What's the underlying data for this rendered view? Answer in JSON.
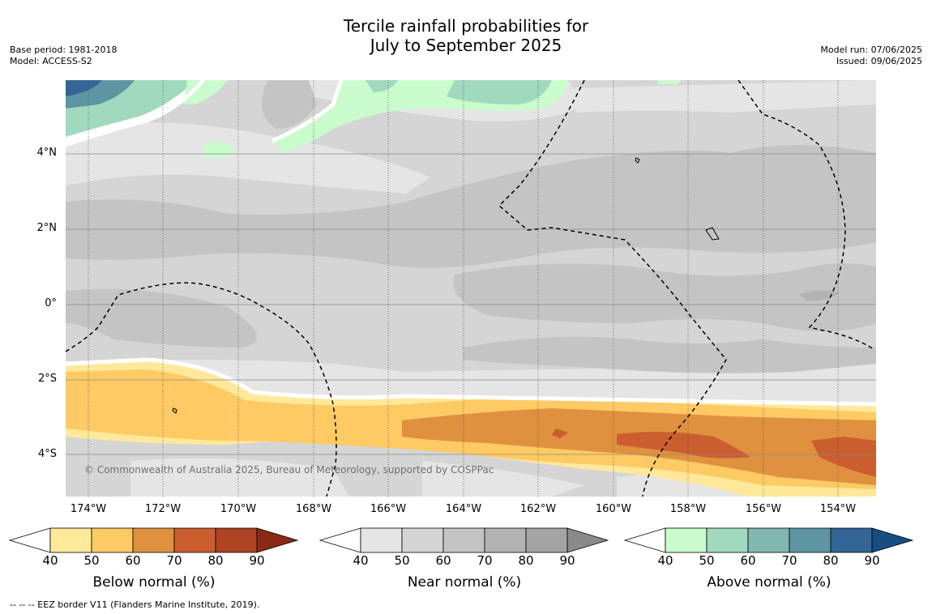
{
  "title_line1": "Tercile rainfall probabilities for",
  "title_line2": "July to September 2025",
  "base_period": "Base period: 1981-2018",
  "model": "Model: ACCESS-S2",
  "model_run": "Model run: 07/06/2025",
  "issued": "Issued: 09/06/2025",
  "copyright": "© Commonwealth of Australia 2025, Bureau of Meteorology, supported by COSPPac",
  "footnote": "--  --  -- EEZ border V11 (Flanders Marine Institute, 2019).",
  "y_ticks": [
    "4°N",
    "2°N",
    "0°",
    "2°S",
    "4°S"
  ],
  "x_ticks": [
    "174°W",
    "172°W",
    "170°W",
    "168°W",
    "166°W",
    "164°W",
    "162°W",
    "160°W",
    "158°W",
    "156°W",
    "154°W"
  ],
  "colorbars": [
    {
      "label": "Below normal (%)",
      "ticks": [
        "40",
        "50",
        "60",
        "70",
        "80",
        "90"
      ],
      "colors": [
        "#ffffff",
        "#fee99b",
        "#fdca64",
        "#e0913f",
        "#ca5e2e",
        "#ae4423",
        "#8b2a14"
      ]
    },
    {
      "label": "Near normal (%)",
      "ticks": [
        "40",
        "50",
        "60",
        "70",
        "80",
        "90"
      ],
      "colors": [
        "#ffffff",
        "#e5e5e5",
        "#d5d5d5",
        "#c4c4c4",
        "#b3b3b3",
        "#a4a4a4",
        "#8a8a8a"
      ]
    },
    {
      "label": "Above normal (%)",
      "ticks": [
        "40",
        "50",
        "60",
        "70",
        "80",
        "90"
      ],
      "colors": [
        "#ffffff",
        "#c9fbcd",
        "#a1d9be",
        "#80b8b0",
        "#5e95a3",
        "#336696",
        "#174d82"
      ]
    }
  ]
}
